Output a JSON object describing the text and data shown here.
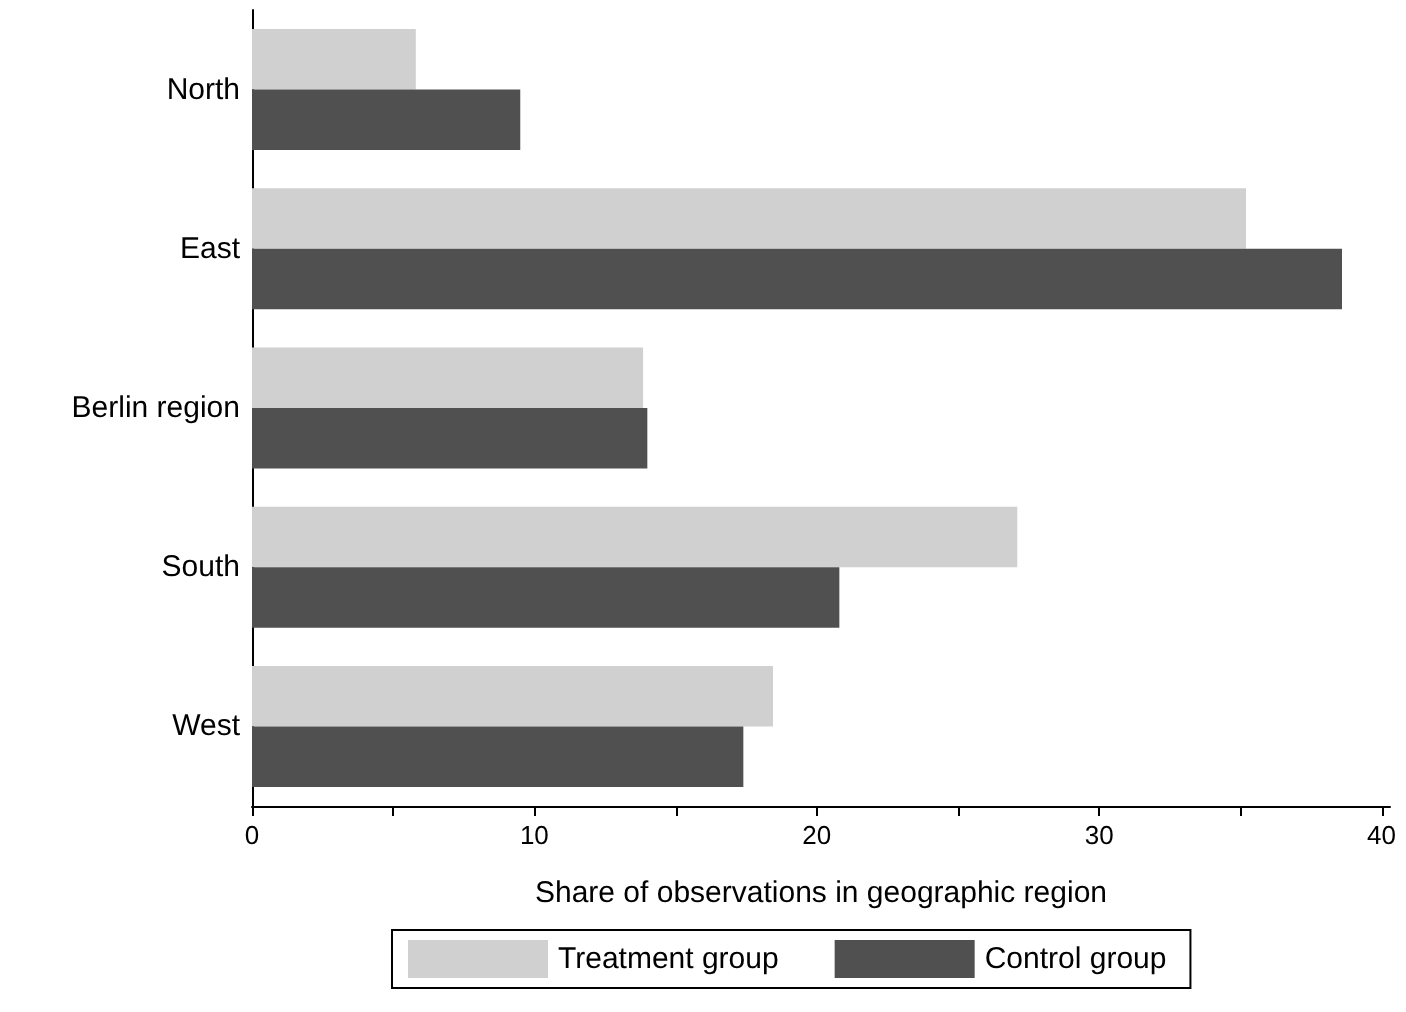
{
  "chart_data": {
    "type": "bar",
    "orientation": "horizontal",
    "xlabel": "Share of observations in geographic region",
    "categories": [
      "North",
      "East",
      "Berlin region",
      "South",
      "West"
    ],
    "series": [
      {
        "name": "Treatment group",
        "color": "#d0d0d0",
        "values": [
          5.8,
          35.2,
          13.85,
          27.1,
          18.45
        ]
      },
      {
        "name": "Control group",
        "color": "#505050",
        "values": [
          9.5,
          38.6,
          14.0,
          20.8,
          17.4
        ]
      }
    ],
    "xlim": [
      0,
      40.3
    ],
    "xticks": [
      0,
      {
        "value": 5,
        "label": null
      },
      10,
      {
        "value": 15,
        "label": null
      },
      20,
      {
        "value": 25,
        "label": null
      },
      30,
      {
        "value": 35,
        "label": null
      },
      40
    ],
    "grid": false,
    "legend": "bottom"
  }
}
